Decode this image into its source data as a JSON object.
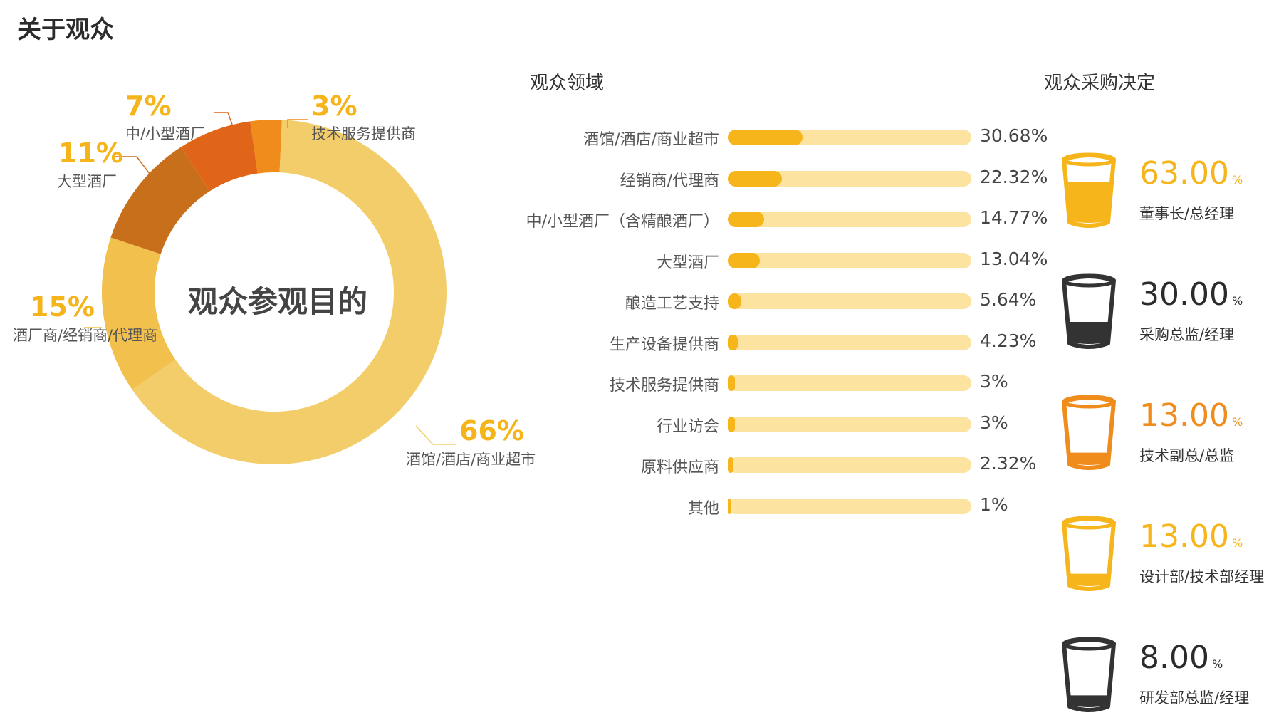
{
  "page_title": "关于观众",
  "chart_data": [
    {
      "type": "pie",
      "title": "观众参观目的",
      "series": [
        {
          "label": "技术服务提供商",
          "value": 3,
          "pct_label": "3%",
          "color": "#ef8c1b"
        },
        {
          "label": "酒馆/酒店/商业超市",
          "value": 66,
          "pct_label": "66%",
          "color": "#f3cd6a"
        },
        {
          "label": "酒厂商/经销商/代理商",
          "value": 15,
          "pct_label": "15%",
          "color": "#f2c04c"
        },
        {
          "label": "大型酒厂",
          "value": 11,
          "pct_label": "11%",
          "color": "#c86f1b"
        },
        {
          "label": "中/小型酒厂",
          "value": 7,
          "pct_label": "7%",
          "color": "#e06518"
        }
      ]
    },
    {
      "type": "bar",
      "title": "观众领域",
      "categories": [
        "酒馆/酒店/商业超市",
        "经销商/代理商",
        "中/小型酒厂（含精酿酒厂）",
        "大型酒厂",
        "酿造工艺支持",
        "生产设备提供商",
        "技术服务提供商",
        "行业访会",
        "原料供应商",
        "其他"
      ],
      "values": [
        30.68,
        22.32,
        14.77,
        13.04,
        5.64,
        4.23,
        3,
        3,
        2.32,
        1
      ],
      "value_labels": [
        "30.68%",
        "22.32%",
        "14.77%",
        "13.04%",
        "5.64%",
        "4.23%",
        "3%",
        "3%",
        "2.32%",
        "1%"
      ],
      "ylim": [
        0,
        100
      ],
      "colors": {
        "fill": "#f5b51b",
        "track": "#fde3a0"
      }
    },
    {
      "type": "table",
      "title": "观众采购决定",
      "rows": [
        {
          "value": "63.00",
          "unit": "%",
          "role": "董事长/总经理",
          "percent": 63,
          "color": "#f5b51b",
          "text_color": "#f5b51b"
        },
        {
          "value": "30.00",
          "unit": "%",
          "role": "采购总监/经理",
          "percent": 30,
          "color": "#333333",
          "text_color": "#2b2b2b"
        },
        {
          "value": "13.00",
          "unit": "%",
          "role": "技术副总/总监",
          "percent": 13,
          "color": "#ef8c1b",
          "text_color": "#ef8c1b"
        },
        {
          "value": "13.00",
          "unit": "%",
          "role": "设计部/技术部经理",
          "percent": 13,
          "color": "#f5b51b",
          "text_color": "#f5b51b"
        },
        {
          "value": "8.00",
          "unit": "%",
          "role": "研发部总监/经理",
          "percent": 8,
          "color": "#333333",
          "text_color": "#2b2b2b"
        }
      ]
    }
  ]
}
